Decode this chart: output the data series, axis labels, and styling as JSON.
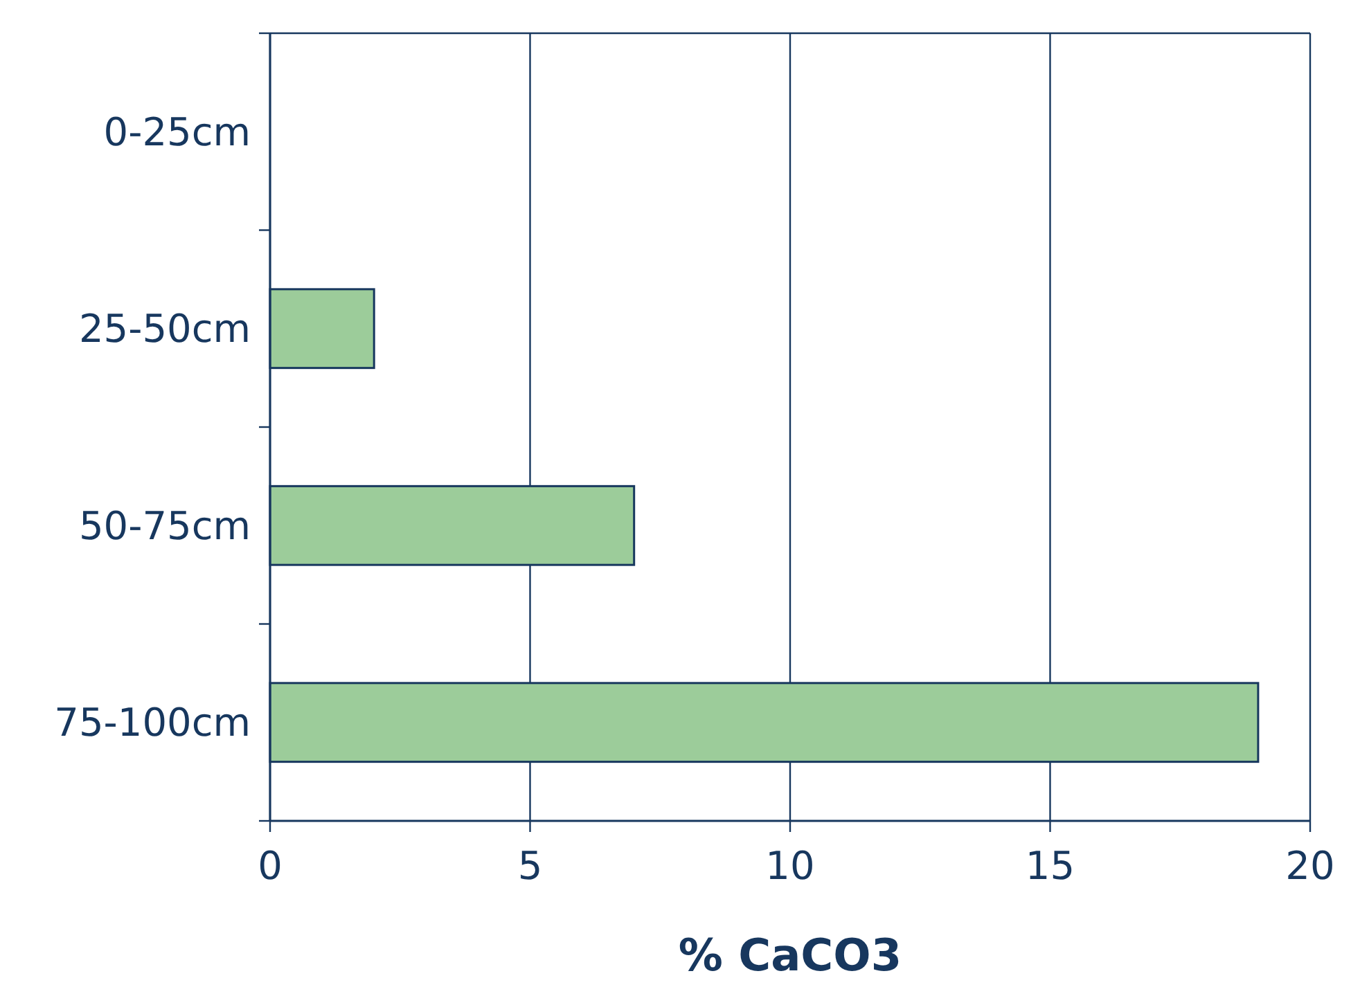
{
  "chart_data": {
    "type": "bar",
    "orientation": "horizontal",
    "xlabel": "% CaCO3",
    "categories": [
      "0-25cm",
      "25-50cm",
      "50-75cm",
      "75-100cm"
    ],
    "values": [
      0,
      2,
      7,
      19
    ],
    "color": "#9ccc9a",
    "xlim": [
      0,
      20
    ],
    "xticks": [
      0,
      5,
      10,
      15,
      20
    ],
    "grid": "x"
  }
}
